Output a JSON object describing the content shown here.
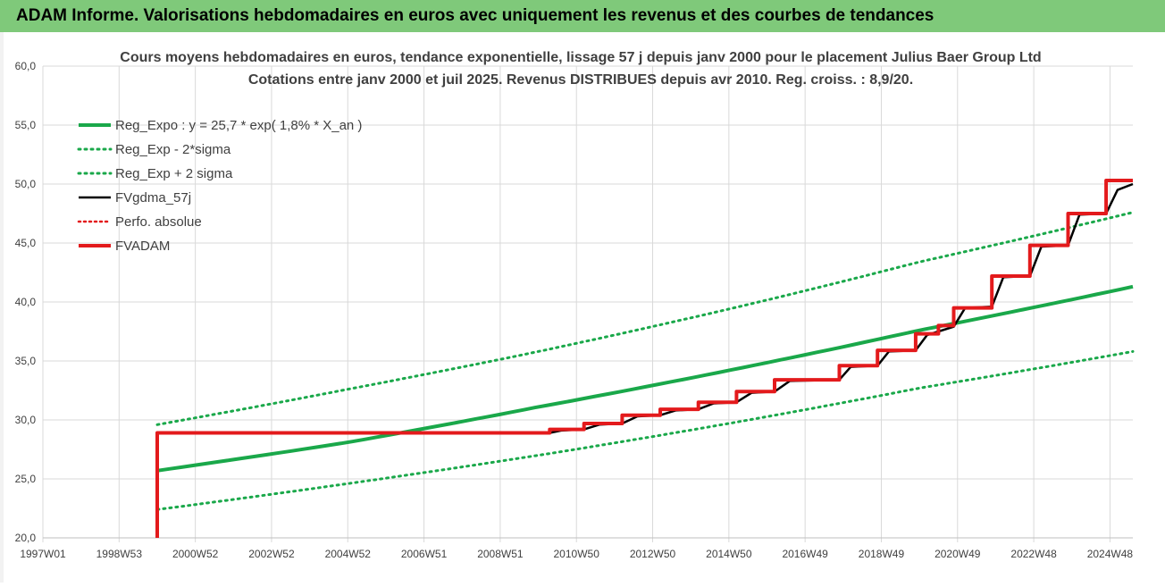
{
  "header": {
    "title": "ADAM Informe. Valorisations hebdomadaires en euros avec uniquement les revenus et des courbes de tendances"
  },
  "colors": {
    "title_bar": "#7fc97a",
    "reg_expo": "#1aa84a",
    "perfo": "#e31a1c",
    "fvgdma": "#000000",
    "grid": "#d9d9d9"
  },
  "chart_data": {
    "type": "line",
    "title": "Cours moyens hebdomadaires en euros, tendance exponentielle, lissage 57 j depuis janv 2000 pour le placement Julius Baer Group Ltd",
    "subtitle": "Cotations entre janv 2000 et juil 2025. Revenus DISTRIBUES depuis avr 2010.  Reg. croiss. : 8,9/20.",
    "ylim": [
      20,
      60
    ],
    "yticks": [
      "60,0",
      "55,0",
      "50,0",
      "45,0",
      "40,0",
      "35,0",
      "30,0",
      "25,0",
      "20,0"
    ],
    "xlim": [
      1997.0,
      2025.6
    ],
    "xticks": [
      {
        "label": "1997W01",
        "x": 1997.0
      },
      {
        "label": "1998W53",
        "x": 1999.0
      },
      {
        "label": "2000W52",
        "x": 2001.0
      },
      {
        "label": "2002W52",
        "x": 2003.0
      },
      {
        "label": "2004W52",
        "x": 2005.0
      },
      {
        "label": "2006W51",
        "x": 2007.0
      },
      {
        "label": "2008W51",
        "x": 2009.0
      },
      {
        "label": "2010W50",
        "x": 2011.0
      },
      {
        "label": "2012W50",
        "x": 2013.0
      },
      {
        "label": "2014W50",
        "x": 2015.0
      },
      {
        "label": "2016W49",
        "x": 2017.0
      },
      {
        "label": "2018W49",
        "x": 2019.0
      },
      {
        "label": "2020W49",
        "x": 2021.0
      },
      {
        "label": "2022W48",
        "x": 2023.0
      },
      {
        "label": "2024W48",
        "x": 2025.0
      }
    ],
    "legend": "top-left",
    "series": [
      {
        "name": "Reg_Expo : y = 25,7 * exp( 1,8% *  X_an )",
        "style": "solid-green",
        "x": [
          2000.0,
          2005.0,
          2010.0,
          2015.0,
          2020.0,
          2025.6
        ],
        "y": [
          25.7,
          28.1,
          31.1,
          34.2,
          37.6,
          41.3
        ]
      },
      {
        "name": "Reg_Exp - 2*sigma",
        "style": "dotted-green",
        "x": [
          2000.0,
          2005.0,
          2010.0,
          2015.0,
          2020.0,
          2025.6
        ],
        "y": [
          22.4,
          24.6,
          27.0,
          29.7,
          32.7,
          35.8
        ]
      },
      {
        "name": "Reg_Exp + 2 sigma",
        "style": "dotted-green",
        "x": [
          2000.0,
          2005.0,
          2010.0,
          2015.0,
          2020.0,
          2025.6
        ],
        "y": [
          29.6,
          32.6,
          35.8,
          39.4,
          43.4,
          47.6
        ]
      },
      {
        "name": "FVgdma_57j",
        "style": "solid-black",
        "x": [
          2000.0,
          2010.3,
          2010.6,
          2011.2,
          2011.6,
          2012.2,
          2012.6,
          2013.2,
          2013.6,
          2014.2,
          2014.6,
          2015.2,
          2015.6,
          2016.2,
          2016.6,
          2017.9,
          2018.2,
          2018.9,
          2019.2,
          2019.9,
          2020.2,
          2020.5,
          2020.9,
          2021.2,
          2021.9,
          2022.2,
          2022.9,
          2023.2,
          2023.9,
          2024.2,
          2024.9,
          2025.2,
          2025.6
        ],
        "y": [
          28.9,
          28.9,
          29.1,
          29.2,
          29.6,
          29.7,
          30.3,
          30.4,
          30.8,
          30.9,
          31.4,
          31.5,
          32.3,
          32.4,
          33.3,
          33.4,
          34.5,
          34.6,
          35.8,
          35.9,
          37.2,
          37.5,
          37.9,
          39.5,
          39.6,
          42.1,
          42.2,
          44.7,
          44.8,
          47.4,
          47.5,
          49.5,
          50.0
        ]
      },
      {
        "name": "Perfo. absolue",
        "style": "dotted-red",
        "x": [],
        "y": []
      },
      {
        "name": "FVADAM",
        "style": "solid-red",
        "x": [
          2000.0,
          2000.0,
          2010.3,
          2010.3,
          2011.2,
          2011.2,
          2012.2,
          2012.2,
          2013.2,
          2013.2,
          2014.2,
          2014.2,
          2015.2,
          2015.2,
          2016.2,
          2016.2,
          2017.9,
          2017.9,
          2018.9,
          2018.9,
          2019.9,
          2019.9,
          2020.5,
          2020.5,
          2020.9,
          2020.9,
          2021.9,
          2021.9,
          2022.9,
          2022.9,
          2023.9,
          2023.9,
          2024.9,
          2024.9,
          2025.15,
          2025.15,
          2025.6
        ],
        "y": [
          20.0,
          28.9,
          28.9,
          29.2,
          29.2,
          29.7,
          29.7,
          30.4,
          30.4,
          30.9,
          30.9,
          31.5,
          31.5,
          32.4,
          32.4,
          33.4,
          33.4,
          34.6,
          34.6,
          35.9,
          35.9,
          37.3,
          37.3,
          38.0,
          38.0,
          39.5,
          39.5,
          42.2,
          42.2,
          44.8,
          44.8,
          47.5,
          47.5,
          50.3,
          50.3,
          50.3,
          50.3
        ]
      }
    ]
  }
}
